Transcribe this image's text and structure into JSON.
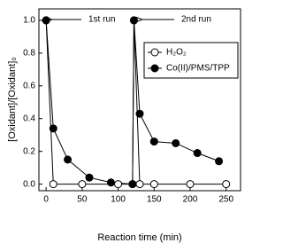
{
  "chart_data": {
    "type": "line",
    "x_label": "Reaction time (min)",
    "y_label": "[Oxidant]/[Oxidant]₀",
    "annotations": [
      "1st run",
      "2nd run"
    ],
    "xlim": [
      -10,
      270
    ],
    "xticks": [
      0,
      50,
      100,
      150,
      200,
      250
    ],
    "ylim": [
      -0.04,
      1.07
    ],
    "yticks": [
      {
        "value": 0,
        "label": "0.0"
      },
      0.2,
      0.4,
      0.6,
      0.8,
      {
        "value": 1,
        "label": "1.0"
      }
    ],
    "legend": "upper right",
    "series": [
      {
        "name": "H₂O₂",
        "color": "#000000",
        "marker_fill": "#ffffff",
        "x": [
          0,
          10,
          50,
          100,
          120,
          122,
          130,
          150,
          200,
          250
        ],
        "values": [
          1,
          0,
          0,
          0,
          0,
          1,
          0,
          0,
          0,
          0
        ]
      },
      {
        "name": "Co(II)/PMS/TPP",
        "color": "#000000",
        "marker_fill": "#000000",
        "x": [
          0,
          10,
          30,
          60,
          90,
          120,
          122,
          130,
          150,
          180,
          210,
          240
        ],
        "values": [
          1,
          0.34,
          0.15,
          0.04,
          0.01,
          0.0,
          1,
          0.43,
          0.26,
          0.25,
          0.19,
          0.14
        ]
      }
    ]
  }
}
